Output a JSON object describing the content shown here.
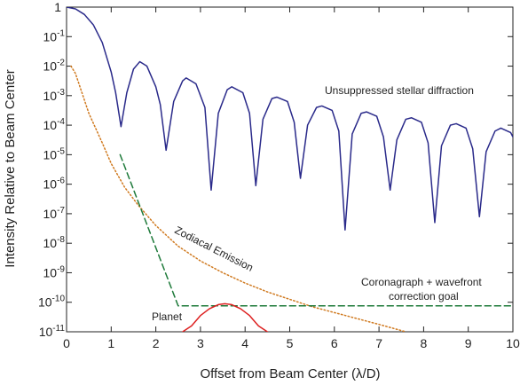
{
  "chart_data": {
    "type": "line",
    "title": "",
    "xlabel": "Offset from Beam Center (λ/D)",
    "ylabel": "Intensity Relative to Beam Center",
    "xlim": [
      0,
      10
    ],
    "ylim_exponent": [
      -11,
      0
    ],
    "yscale": "log",
    "grid": false,
    "x_ticks": [
      "0",
      "1",
      "2",
      "3",
      "4",
      "5",
      "6",
      "7",
      "8",
      "9",
      "10"
    ],
    "y_ticks": [
      {
        "base": "1",
        "exp": ""
      },
      {
        "base": "10",
        "exp": "-1"
      },
      {
        "base": "10",
        "exp": "-2"
      },
      {
        "base": "10",
        "exp": "-3"
      },
      {
        "base": "10",
        "exp": "-4"
      },
      {
        "base": "10",
        "exp": "-5"
      },
      {
        "base": "10",
        "exp": "-6"
      },
      {
        "base": "10",
        "exp": "-7"
      },
      {
        "base": "10",
        "exp": "-8"
      },
      {
        "base": "10",
        "exp": "-9"
      },
      {
        "base": "10",
        "exp": "-10"
      },
      {
        "base": "10",
        "exp": "-11"
      }
    ],
    "series": [
      {
        "name": "Unsuppressed stellar diffraction",
        "color": "#2a2a8a",
        "style": "solid",
        "x": [
          0,
          0.2,
          0.4,
          0.6,
          0.8,
          1.0,
          1.1,
          1.22,
          1.35,
          1.5,
          1.64,
          1.8,
          2.0,
          2.1,
          2.23,
          2.4,
          2.6,
          2.68,
          2.9,
          3.1,
          3.24,
          3.4,
          3.6,
          3.7,
          3.95,
          4.1,
          4.24,
          4.4,
          4.6,
          4.71,
          4.95,
          5.1,
          5.24,
          5.4,
          5.6,
          5.72,
          5.95,
          6.1,
          6.24,
          6.4,
          6.6,
          6.72,
          6.95,
          7.1,
          7.25,
          7.4,
          7.6,
          7.73,
          7.95,
          8.1,
          8.25,
          8.4,
          8.6,
          8.73,
          8.95,
          9.1,
          9.25,
          9.4,
          9.6,
          9.73,
          9.95,
          10.0
        ],
        "y_exp": [
          0,
          -0.06,
          -0.25,
          -0.6,
          -1.2,
          -2.2,
          -2.9,
          -4.05,
          -2.9,
          -2.1,
          -1.85,
          -2.0,
          -2.7,
          -3.3,
          -4.85,
          -3.2,
          -2.5,
          -2.4,
          -2.6,
          -3.4,
          -6.2,
          -3.6,
          -2.8,
          -2.7,
          -2.9,
          -3.6,
          -6.05,
          -3.8,
          -3.1,
          -3.05,
          -3.2,
          -3.9,
          -5.8,
          -4.0,
          -3.4,
          -3.35,
          -3.5,
          -4.2,
          -7.55,
          -4.3,
          -3.6,
          -3.55,
          -3.7,
          -4.4,
          -6.2,
          -4.5,
          -3.8,
          -3.75,
          -3.9,
          -4.6,
          -7.3,
          -4.7,
          -4.0,
          -3.95,
          -4.1,
          -4.8,
          -7.1,
          -4.9,
          -4.2,
          -4.1,
          -4.25,
          -4.4
        ]
      },
      {
        "name": "Zodiacal Emission",
        "color": "#d07a20",
        "style": "dotted",
        "x": [
          0.1,
          0.2,
          0.5,
          0.8,
          1.0,
          1.3,
          1.6,
          2.0,
          2.5,
          3.0,
          3.5,
          4.0,
          4.5,
          5.0,
          5.5,
          6.0,
          6.5,
          7.0,
          7.6
        ],
        "y_exp": [
          -2.0,
          -2.25,
          -3.6,
          -4.6,
          -5.3,
          -6.1,
          -6.7,
          -7.4,
          -8.1,
          -8.6,
          -9.0,
          -9.35,
          -9.65,
          -9.9,
          -10.15,
          -10.35,
          -10.55,
          -10.75,
          -11.0
        ]
      },
      {
        "name": "Coronagraph + wavefront correction goal",
        "color": "#1e7a3a",
        "style": "dashed",
        "x": [
          1.2,
          2.5,
          10.0
        ],
        "y_exp": [
          -5.0,
          -10.12,
          -10.12
        ]
      },
      {
        "name": "Planet",
        "color": "#dd2020",
        "style": "solid",
        "x": [
          2.6,
          2.8,
          3.0,
          3.2,
          3.4,
          3.55,
          3.7,
          3.9,
          4.1,
          4.3,
          4.5
        ],
        "y_exp": [
          -11.25,
          -10.8,
          -10.45,
          -10.22,
          -10.08,
          -10.05,
          -10.08,
          -10.22,
          -10.45,
          -10.8,
          -11.25
        ]
      }
    ],
    "annotations": {
      "stellar": "Unsuppressed stellar diffraction",
      "zodiacal": "Zodiacal Emission",
      "coronagraph_1": "Coronagraph + wavefront",
      "coronagraph_2": "correction goal",
      "planet": "Planet"
    }
  }
}
